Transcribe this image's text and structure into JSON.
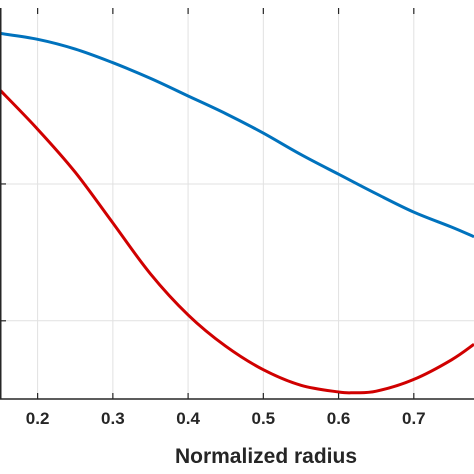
{
  "chart_data": {
    "type": "line",
    "title": "",
    "xlabel": "Normalized radius",
    "ylabel": "",
    "xlim": [
      0.15,
      0.78
    ],
    "ylim": [
      0,
      1
    ],
    "grid": true,
    "legend": "none",
    "x_ticks": [
      0.2,
      0.3,
      0.4,
      0.5,
      0.6,
      0.7
    ],
    "x_tick_labels": [
      "0.2",
      "0.3",
      "0.4",
      "0.5",
      "0.6",
      "0.7"
    ],
    "y_gridlines": [
      0.2,
      0.55
    ],
    "series": [
      {
        "color": "#0072BD",
        "x": [
          0.15,
          0.2,
          0.25,
          0.3,
          0.35,
          0.4,
          0.45,
          0.5,
          0.55,
          0.6,
          0.65,
          0.7,
          0.75,
          0.78
        ],
        "y": [
          0.935,
          0.92,
          0.895,
          0.86,
          0.82,
          0.775,
          0.73,
          0.68,
          0.625,
          0.575,
          0.525,
          0.478,
          0.44,
          0.415
        ]
      },
      {
        "color": "#D00000",
        "x": [
          0.15,
          0.2,
          0.25,
          0.3,
          0.35,
          0.4,
          0.45,
          0.5,
          0.55,
          0.6,
          0.62,
          0.65,
          0.7,
          0.75,
          0.78
        ],
        "y": [
          0.79,
          0.69,
          0.58,
          0.45,
          0.32,
          0.215,
          0.135,
          0.075,
          0.035,
          0.018,
          0.016,
          0.02,
          0.05,
          0.1,
          0.14
        ]
      }
    ]
  }
}
